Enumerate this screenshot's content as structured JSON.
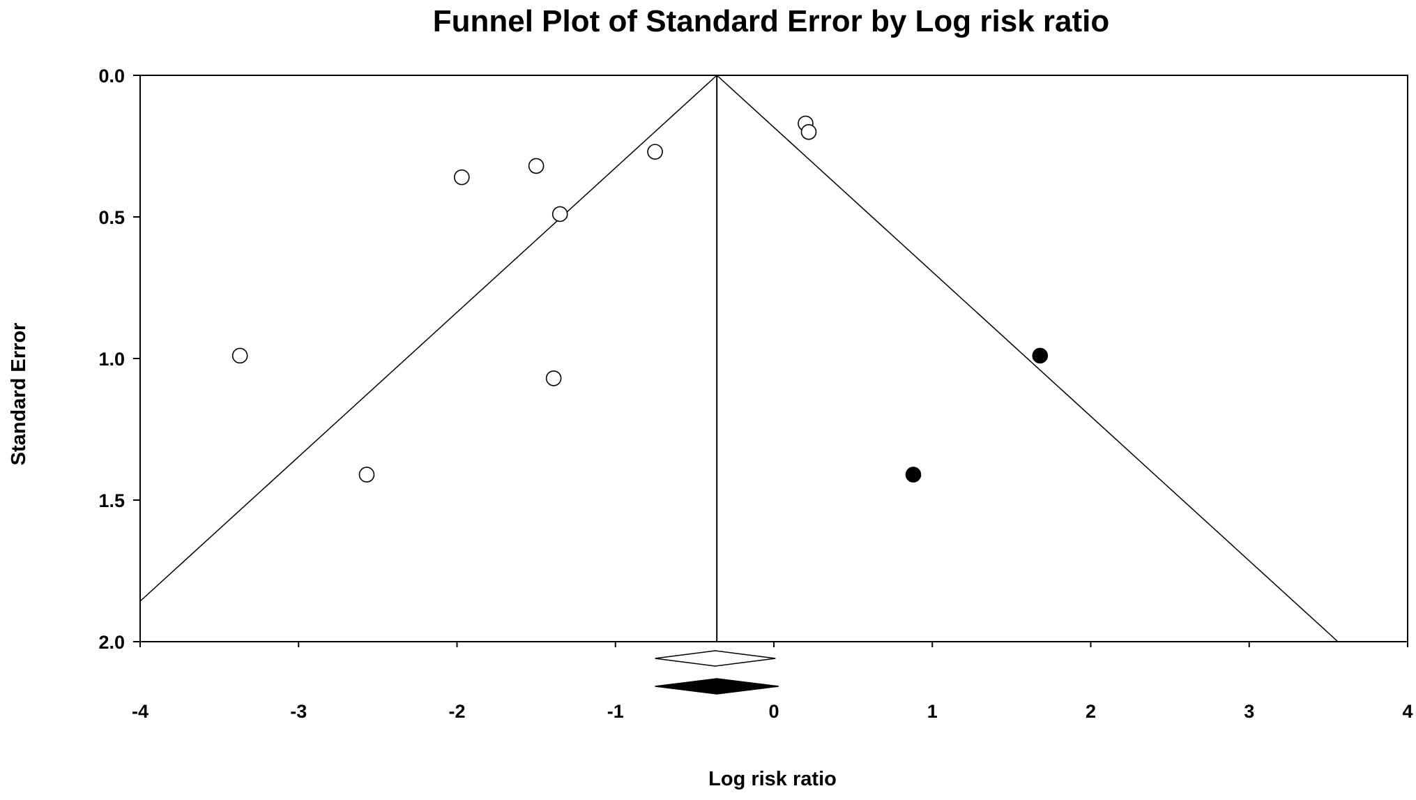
{
  "chart_data": {
    "type": "scatter",
    "title": "Funnel Plot of Standard Error by Log risk ratio",
    "xlabel": "Log risk ratio",
    "ylabel": "Standard Error",
    "xlim": [
      -4,
      4
    ],
    "ylim": [
      0,
      2
    ],
    "y_inverted": true,
    "x_ticks": [
      -4,
      -3,
      -2,
      -1,
      0,
      1,
      2,
      3,
      4
    ],
    "x_tick_labels": [
      "-4",
      "-3",
      "-2",
      "-1",
      "0",
      "1",
      "2",
      "3",
      "4"
    ],
    "y_ticks": [
      0,
      0.5,
      1,
      1.5,
      2
    ],
    "y_tick_labels": [
      "0.0",
      "0.5",
      "1.0",
      "1.5",
      "2.0"
    ],
    "grid": false,
    "funnel": {
      "center_x": -0.36,
      "se_max": 2.0,
      "multiplier": 1.96
    },
    "series": [
      {
        "marker": "open-circle",
        "points": [
          {
            "x": -3.37,
            "y": 0.99
          },
          {
            "x": -2.57,
            "y": 1.41
          },
          {
            "x": -1.97,
            "y": 0.36
          },
          {
            "x": -1.5,
            "y": 0.32
          },
          {
            "x": -1.35,
            "y": 0.49
          },
          {
            "x": -1.39,
            "y": 1.07
          },
          {
            "x": -0.75,
            "y": 0.27
          },
          {
            "x": 0.2,
            "y": 0.17
          },
          {
            "x": 0.22,
            "y": 0.2
          }
        ]
      },
      {
        "marker": "filled-circle",
        "points": [
          {
            "x": 1.68,
            "y": 0.99
          },
          {
            "x": 0.88,
            "y": 1.41
          }
        ]
      }
    ],
    "summary_diamonds": [
      {
        "style": "open",
        "center": -0.37,
        "lower": -0.75,
        "upper": 0.01
      },
      {
        "style": "filled",
        "center": -0.36,
        "lower": -0.75,
        "upper": 0.03
      }
    ],
    "colors": {
      "line": "#000000",
      "open_fill": "#ffffff",
      "filled_fill": "#000000"
    }
  }
}
